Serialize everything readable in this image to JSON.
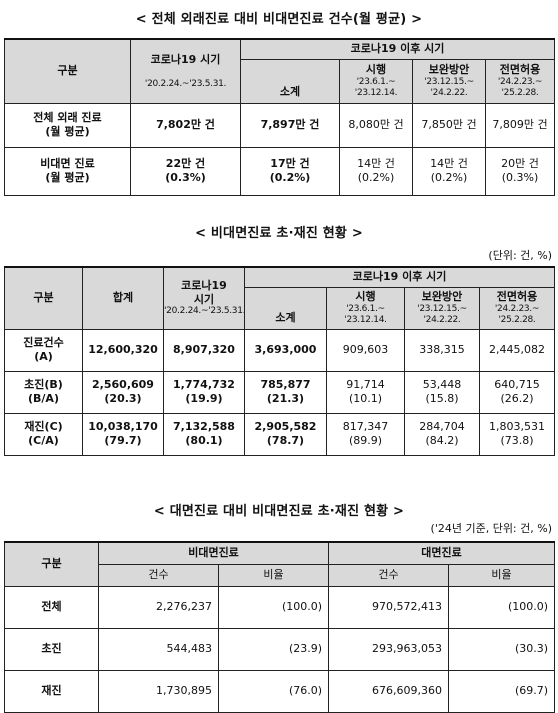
{
  "table1": {
    "title": "< 전체 외래진료 대비 비대면진료 건수(월 평균) >",
    "h_category": "구분",
    "h_pre": "코로나19 시기",
    "h_pre_period": "'20.2.24.~'23.5.31.",
    "h_post": "코로나19 이후 시기",
    "h_subtotal": "소계",
    "h_p1": "시행",
    "h_p1_period_a": "'23.6.1.~",
    "h_p1_period_b": "'23.12.14.",
    "h_p2": "보완방안",
    "h_p2_period_a": "'23.12.15.~",
    "h_p2_period_b": "'24.2.22.",
    "h_p3": "전면허용",
    "h_p3_period_a": "'24.2.23.~",
    "h_p3_period_b": "'25.2.28.",
    "rows": [
      {
        "label_a": "전체 외래 진료",
        "label_b": "(월 평균)",
        "pre": "7,802만 건",
        "subtotal": "7,897만 건",
        "p1": "8,080만 건",
        "p2": "7,850만 건",
        "p3": "7,809만 건"
      },
      {
        "label_a": "비대면 진료",
        "label_b": "(월 평균)",
        "pre": "22만 건",
        "pre_pct": "(0.3%)",
        "subtotal": "17만 건",
        "subtotal_pct": "(0.2%)",
        "p1": "14만 건",
        "p1_pct": "(0.2%)",
        "p2": "14만 건",
        "p2_pct": "(0.2%)",
        "p3": "20만 건",
        "p3_pct": "(0.3%)"
      }
    ]
  },
  "table2": {
    "title": "< 비대면진료 초·재진 현황 >",
    "unit": "(단위: 건, %)",
    "h_category": "구분",
    "h_total": "합계",
    "h_pre_a": "코로나19",
    "h_pre_b": "시기",
    "h_pre_period": "'20.2.24.~'23.5.31.",
    "h_post": "코로나19 이후 시기",
    "h_subtotal": "소계",
    "h_p1": "시행",
    "h_p1_period_a": "'23.6.1.~",
    "h_p1_period_b": "'23.12.14.",
    "h_p2": "보완방안",
    "h_p2_period_a": "'23.12.15.~",
    "h_p2_period_b": "'24.2.22.",
    "h_p3": "전면허용",
    "h_p3_period_a": "'24.2.23.~",
    "h_p3_period_b": "'25.2.28.",
    "rows": [
      {
        "label_a": "진료건수",
        "label_b": "(A)",
        "total": "12,600,320",
        "pre": "8,907,320",
        "subtotal": "3,693,000",
        "p1": "909,603",
        "p2": "338,315",
        "p3": "2,445,082"
      },
      {
        "label_a": "초진(B)",
        "label_b": "(B/A)",
        "total": "2,560,609",
        "total_pct": "(20.3)",
        "pre": "1,774,732",
        "pre_pct": "(19.9)",
        "subtotal": "785,877",
        "subtotal_pct": "(21.3)",
        "p1": "91,714",
        "p1_pct": "(10.1)",
        "p2": "53,448",
        "p2_pct": "(15.8)",
        "p3": "640,715",
        "p3_pct": "(26.2)"
      },
      {
        "label_a": "재진(C)",
        "label_b": "(C/A)",
        "total": "10,038,170",
        "total_pct": "(79.7)",
        "pre": "7,132,588",
        "pre_pct": "(80.1)",
        "subtotal": "2,905,582",
        "subtotal_pct": "(78.7)",
        "p1": "817,347",
        "p1_pct": "(89.9)",
        "p2": "284,704",
        "p2_pct": "(84.2)",
        "p3": "1,803,531",
        "p3_pct": "(73.8)"
      }
    ]
  },
  "table3": {
    "title": "< 대면진료 대비 비대면진료 초·재진 현황 >",
    "unit": "('24년 기준, 단위: 건, %)",
    "h_category": "구분",
    "h_nonface": "비대면진료",
    "h_face": "대면진료",
    "h_count": "건수",
    "h_ratio": "비율",
    "rows": [
      {
        "label": "전체",
        "nf_count": "2,276,237",
        "nf_ratio": "(100.0)",
        "f_count": "970,572,413",
        "f_ratio": "(100.0)"
      },
      {
        "label": "초진",
        "nf_count": "544,483",
        "nf_ratio": "(23.9)",
        "f_count": "293,963,053",
        "f_ratio": "(30.3)"
      },
      {
        "label": "재진",
        "nf_count": "1,730,895",
        "nf_ratio": "(76.0)",
        "f_count": "676,609,360",
        "f_ratio": "(69.7)"
      }
    ]
  }
}
